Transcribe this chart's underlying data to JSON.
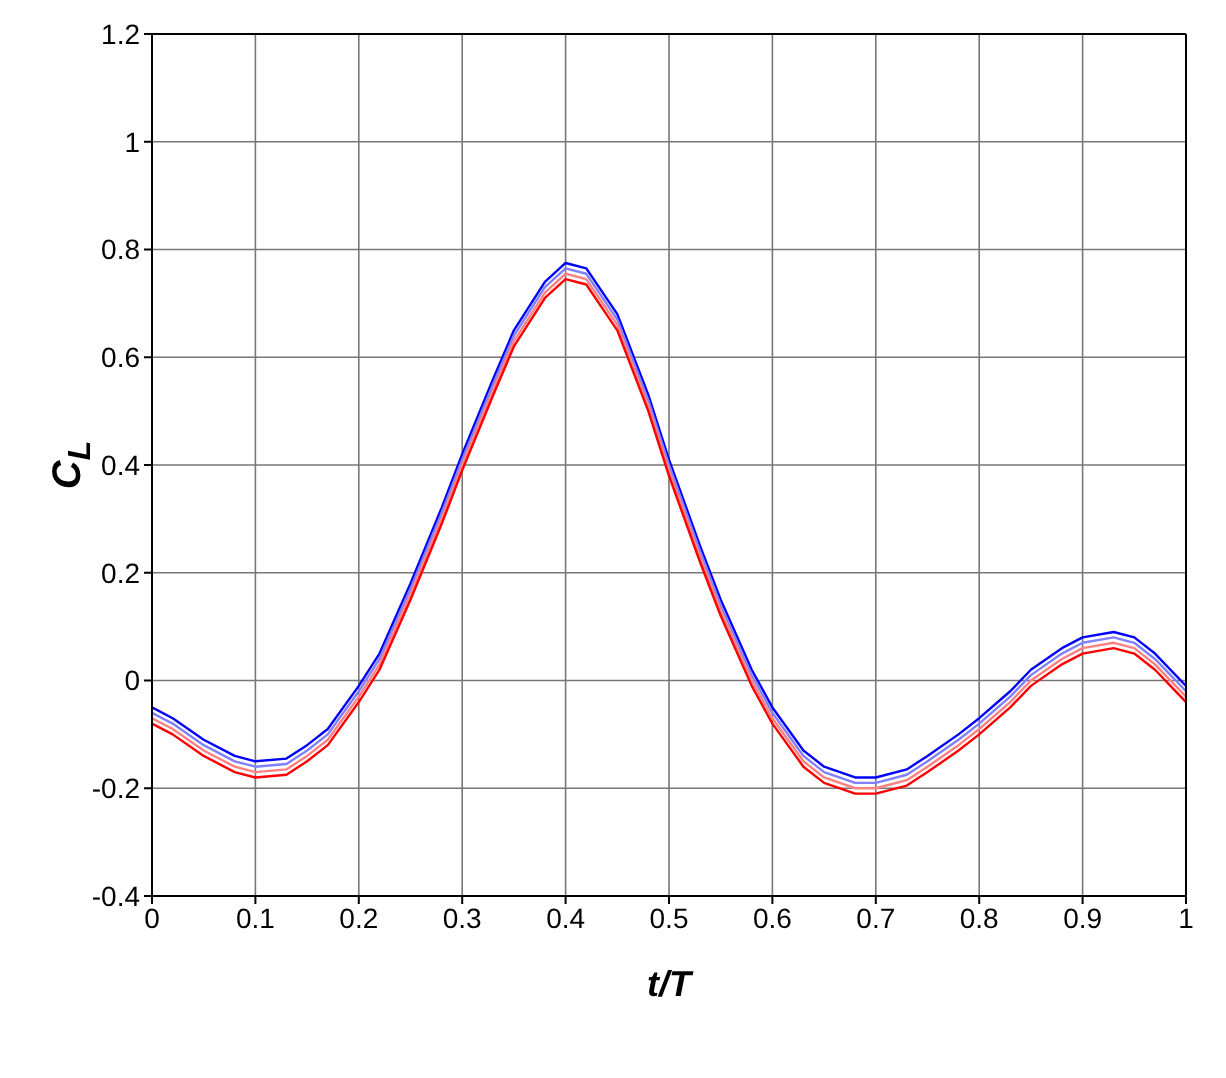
{
  "chart_data": {
    "type": "line",
    "xlabel": "t/T",
    "ylabel": "C$_{L}$",
    "x": [
      0,
      0.02,
      0.05,
      0.08,
      0.1,
      0.13,
      0.15,
      0.17,
      0.2,
      0.22,
      0.25,
      0.28,
      0.3,
      0.33,
      0.35,
      0.38,
      0.4,
      0.42,
      0.45,
      0.48,
      0.5,
      0.53,
      0.55,
      0.58,
      0.6,
      0.63,
      0.65,
      0.68,
      0.7,
      0.73,
      0.75,
      0.78,
      0.8,
      0.83,
      0.85,
      0.88,
      0.9,
      0.93,
      0.95,
      0.97,
      1
    ],
    "series": [
      {
        "color": "#0000ff",
        "values": [
          -0.05,
          -0.07,
          -0.11,
          -0.14,
          -0.15,
          -0.145,
          -0.12,
          -0.09,
          -0.01,
          0.05,
          0.18,
          0.32,
          0.42,
          0.56,
          0.65,
          0.74,
          0.775,
          0.765,
          0.68,
          0.53,
          0.41,
          0.25,
          0.15,
          0.02,
          -0.05,
          -0.13,
          -0.16,
          -0.18,
          -0.18,
          -0.165,
          -0.14,
          -0.1,
          -0.07,
          -0.02,
          0.02,
          0.06,
          0.08,
          0.09,
          0.08,
          0.05,
          -0.01
        ]
      },
      {
        "color": "#8080ff",
        "values": [
          -0.06,
          -0.08,
          -0.12,
          -0.15,
          -0.16,
          -0.155,
          -0.13,
          -0.1,
          -0.02,
          0.04,
          0.17,
          0.31,
          0.41,
          0.55,
          0.64,
          0.73,
          0.765,
          0.755,
          0.67,
          0.52,
          0.4,
          0.24,
          0.14,
          0.01,
          -0.06,
          -0.14,
          -0.17,
          -0.19,
          -0.19,
          -0.175,
          -0.15,
          -0.11,
          -0.08,
          -0.03,
          0.01,
          0.05,
          0.07,
          0.08,
          0.07,
          0.04,
          -0.02
        ]
      },
      {
        "color": "#ff8080",
        "values": [
          -0.07,
          -0.09,
          -0.13,
          -0.16,
          -0.17,
          -0.165,
          -0.14,
          -0.11,
          -0.03,
          0.03,
          0.16,
          0.3,
          0.4,
          0.54,
          0.63,
          0.72,
          0.755,
          0.745,
          0.66,
          0.51,
          0.39,
          0.23,
          0.13,
          0,
          -0.07,
          -0.15,
          -0.18,
          -0.2,
          -0.2,
          -0.185,
          -0.16,
          -0.12,
          -0.09,
          -0.04,
          0,
          0.04,
          0.06,
          0.07,
          0.06,
          0.03,
          -0.03
        ]
      },
      {
        "color": "#ff0000",
        "values": [
          -0.08,
          -0.1,
          -0.14,
          -0.17,
          -0.18,
          -0.175,
          -0.15,
          -0.12,
          -0.04,
          0.02,
          0.15,
          0.29,
          0.39,
          0.53,
          0.62,
          0.71,
          0.745,
          0.735,
          0.65,
          0.5,
          0.38,
          0.22,
          0.12,
          -0.01,
          -0.08,
          -0.16,
          -0.19,
          -0.21,
          -0.21,
          -0.195,
          -0.17,
          -0.13,
          -0.1,
          -0.05,
          -0.01,
          0.03,
          0.05,
          0.06,
          0.05,
          0.02,
          -0.04
        ]
      }
    ],
    "xlim": [
      0,
      1
    ],
    "xticks": [
      0,
      0.1,
      0.2,
      0.3,
      0.4,
      0.5,
      0.6,
      0.7,
      0.8,
      0.9,
      1
    ],
    "ylim": [
      -0.4,
      1.2
    ],
    "yticks": [
      -0.4,
      -0.2,
      0,
      0.2,
      0.4,
      0.6,
      0.8,
      1,
      1.2
    ],
    "grid": true,
    "marker": "none",
    "line_style": "solid"
  }
}
